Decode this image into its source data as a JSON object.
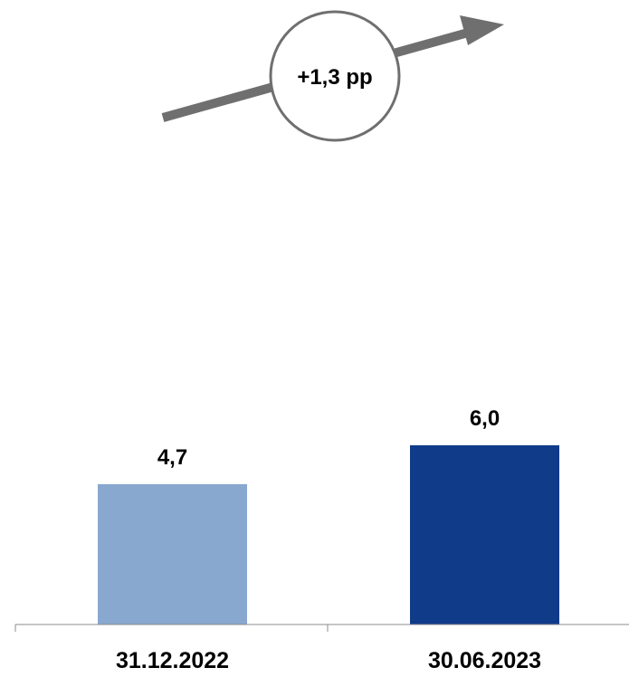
{
  "chart_data": {
    "type": "bar",
    "categories": [
      "31.12.2022",
      "30.06.2023"
    ],
    "values": [
      4.7,
      6.0
    ],
    "value_labels": [
      "4,7",
      "6,0"
    ],
    "colors": [
      "#89a8cf",
      "#0f3b89"
    ],
    "ylim": [
      0,
      6.0
    ],
    "grid": false,
    "annotation": {
      "text": "+1,3 pp",
      "icon": "trend-arrow-up",
      "arrow_color": "#6f6f6f",
      "circle_color": "#6f6f6f"
    }
  }
}
